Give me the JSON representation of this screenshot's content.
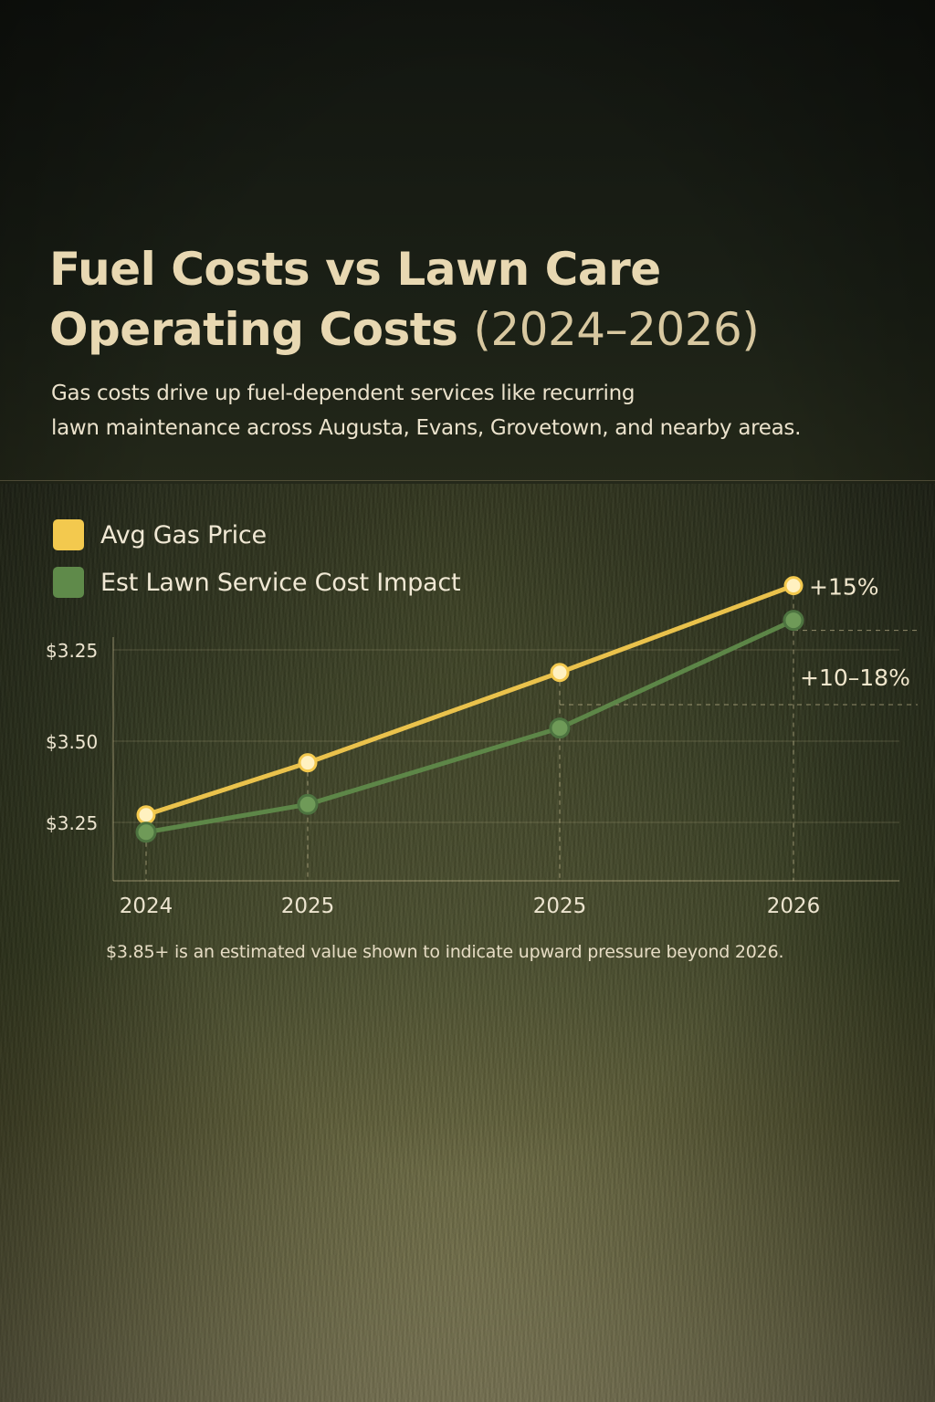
{
  "title_main": "Fuel Costs vs Lawn Care Operating Costs",
  "title_years": "(2024–2026)",
  "subtitle_line1": "Gas costs drive up fuel-dependent services like recurring",
  "subtitle_line2": "lawn maintenance across Augusta, Evans, Grovetown, and nearby areas.",
  "footnote": "$3.85+ is an estimated value shown to indicate upward pressure beyond 2026.",
  "colors": {
    "gas": "#f3c94e",
    "lawn": "#5f8a4a"
  },
  "chart_data": {
    "type": "line",
    "title": "",
    "xlabel": "",
    "ylabel": "",
    "categories": [
      "2024",
      "2025",
      "2025",
      "2026"
    ],
    "y_tick_labels": [
      "$3.25",
      "$3.50",
      "$3.25"
    ],
    "series": [
      {
        "name": "Avg Gas Price",
        "values": [
          3.19,
          3.34,
          3.6,
          3.85
        ],
        "color": "#f3c94e"
      },
      {
        "name": "Est Lawn Service Cost Impact",
        "values": [
          3.14,
          3.22,
          3.44,
          3.75
        ],
        "color": "#5f8a4a"
      }
    ],
    "annotations": [
      "+15%",
      "+10–18%"
    ],
    "ylim": [
      3.0,
      3.92
    ],
    "grid": true,
    "legend": "top-left"
  }
}
